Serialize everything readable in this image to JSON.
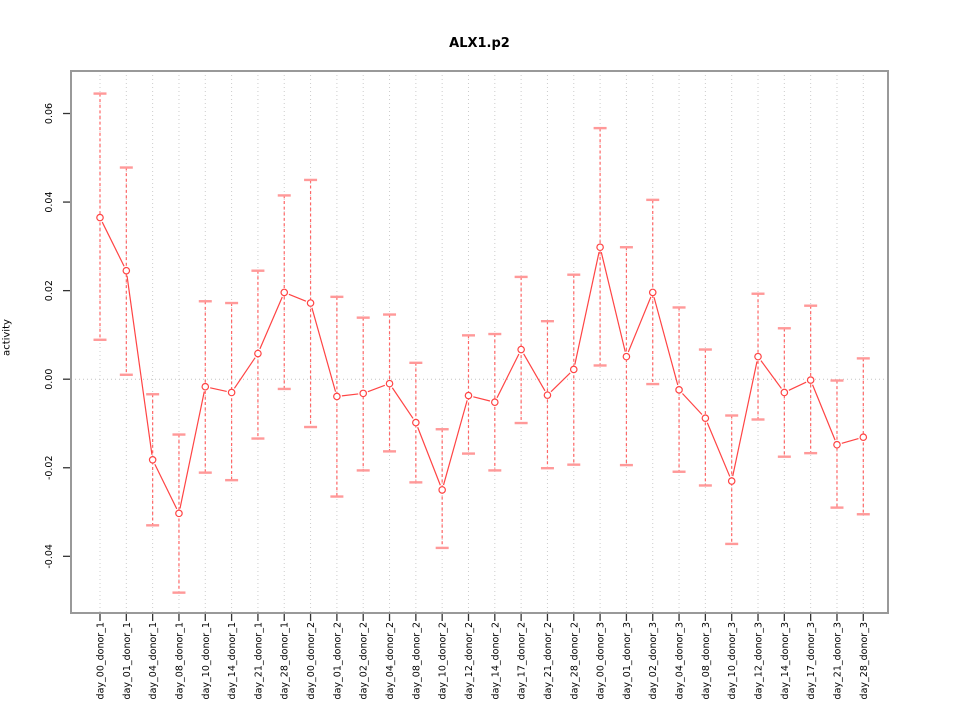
{
  "title": "ALX1.p2",
  "chart_data": {
    "type": "line",
    "title": "ALX1.p2",
    "xlabel": "",
    "ylabel": "activity",
    "legend": "none",
    "grid": "vertical dotted gridline at every category; dotted horizontal line at y=0 only",
    "marker": "open-circle",
    "error_bars": "dashed vertical line with flat caps",
    "categories": [
      "day_00_donor_1",
      "day_01_donor_1",
      "day_04_donor_1",
      "day_08_donor_1",
      "day_10_donor_1",
      "day_14_donor_1",
      "day_21_donor_1",
      "day_28_donor_1",
      "day_00_donor_2",
      "day_01_donor_2",
      "day_02_donor_2",
      "day_04_donor_2",
      "day_08_donor_2",
      "day_10_donor_2",
      "day_12_donor_2",
      "day_14_donor_2",
      "day_17_donor_2",
      "day_21_donor_2",
      "day_28_donor_2",
      "day_00_donor_3",
      "day_01_donor_3",
      "day_02_donor_3",
      "day_04_donor_3",
      "day_08_donor_3",
      "day_10_donor_3",
      "day_12_donor_3",
      "day_14_donor_3",
      "day_17_donor_3",
      "day_21_donor_3",
      "day_28_donor_3"
    ],
    "series": [
      {
        "name": "activity",
        "values": [
          0.0365,
          0.0245,
          -0.0182,
          -0.0303,
          -0.0017,
          -0.003,
          0.0058,
          0.0196,
          0.0172,
          -0.0039,
          -0.0032,
          -0.001,
          -0.0098,
          -0.025,
          -0.0037,
          -0.0052,
          0.0067,
          -0.0036,
          0.0022,
          0.0298,
          0.0051,
          0.0196,
          -0.0024,
          -0.0088,
          -0.023,
          0.0051,
          -0.003,
          -0.0002,
          -0.0148,
          -0.0131
        ],
        "error_high": [
          0.0645,
          0.0478,
          -0.0034,
          -0.0125,
          0.0176,
          0.0172,
          0.0245,
          0.0415,
          0.045,
          0.0186,
          0.0139,
          0.0146,
          0.0037,
          -0.0113,
          0.0099,
          0.0102,
          0.0231,
          0.0131,
          0.0236,
          0.0567,
          0.0298,
          0.0405,
          0.0162,
          0.0067,
          -0.0082,
          0.0193,
          0.0115,
          0.0166,
          -0.0003,
          0.0047
        ],
        "error_low": [
          0.0089,
          0.001,
          -0.033,
          -0.0482,
          -0.0211,
          -0.0228,
          -0.0134,
          -0.0022,
          -0.0108,
          -0.0265,
          -0.0206,
          -0.0163,
          -0.0233,
          -0.0381,
          -0.0168,
          -0.0206,
          -0.0099,
          -0.0201,
          -0.0193,
          0.0031,
          -0.0194,
          -0.0011,
          -0.0209,
          -0.024,
          -0.0372,
          -0.0091,
          -0.0175,
          -0.0167,
          -0.029,
          -0.0305
        ]
      }
    ],
    "yticks": [
      -0.04,
      -0.02,
      0,
      0.02,
      0.04,
      0.06
    ],
    "ytick_labels": [
      "-0.04",
      "-0.02",
      "0.00",
      "0.02",
      "0.04",
      "0.06"
    ],
    "ylim": [
      -0.0528,
      0.0696
    ],
    "colors": {
      "line": "#ff4444",
      "marker_stroke": "#ff4444",
      "error_line": "#ff6666",
      "error_cap": "#ff9999",
      "grid": "#cccccc",
      "zero_line": "#c4c4c4",
      "box": "#999999",
      "tick": "#333333",
      "text": "#000000"
    }
  }
}
